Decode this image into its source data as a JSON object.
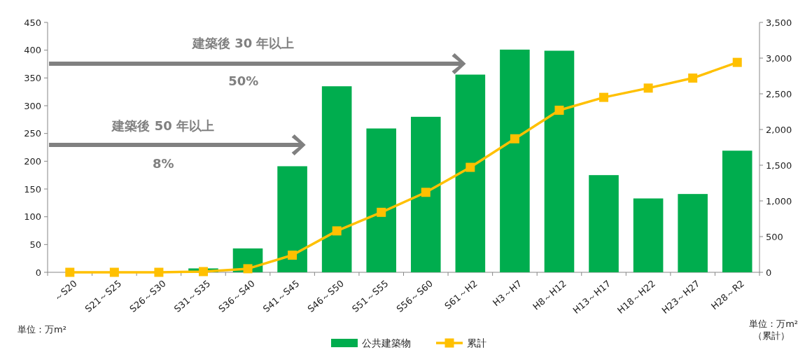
{
  "chart_data": {
    "type": "bar",
    "categories": [
      "～S20",
      "S21～S25",
      "S26～S30",
      "S31～S35",
      "S36～S40",
      "S41～S45",
      "S46～S50",
      "S51～S55",
      "S56～S60",
      "S61～H2",
      "H3～H7",
      "H8～H12",
      "H13～H17",
      "H18～H22",
      "H23～H27",
      "H28～R2"
    ],
    "series": [
      {
        "name": "公共建築物",
        "color": "#00ad4e",
        "values": [
          0,
          0,
          0,
          7,
          43,
          191,
          335,
          259,
          280,
          356,
          401,
          399,
          175,
          133,
          141,
          219
        ]
      },
      {
        "name": "累計",
        "type": "line",
        "axis": "y2",
        "color": "#ffc000",
        "values": [
          0,
          0,
          0,
          10,
          50,
          240,
          580,
          840,
          1120,
          1470,
          1870,
          2270,
          2450,
          2580,
          2720,
          2940
        ]
      }
    ],
    "ylim": [
      0,
      450
    ],
    "yticks": [
      0,
      50,
      100,
      150,
      200,
      250,
      300,
      350,
      400,
      450
    ],
    "y2lim": [
      0,
      3500
    ],
    "y2ticks": [
      0,
      {
        "value": 500,
        "label": "500"
      },
      {
        "value": 1000,
        "label": "1,000"
      },
      {
        "value": 1500,
        "label": "1,500"
      },
      {
        "value": 2000,
        "label": "2,000"
      },
      {
        "value": 2500,
        "label": "2,500"
      },
      {
        "value": 3000,
        "label": "3,000"
      },
      {
        "value": 3500,
        "label": "3,500"
      }
    ],
    "marker": "square",
    "legend": "bottom",
    "grid": false,
    "annotations": [
      "建築後 30 年以上",
      "50%",
      "建築後 50 年以上",
      "8%",
      "単位：万m²",
      "単位：万m²\n（累計）"
    ]
  }
}
